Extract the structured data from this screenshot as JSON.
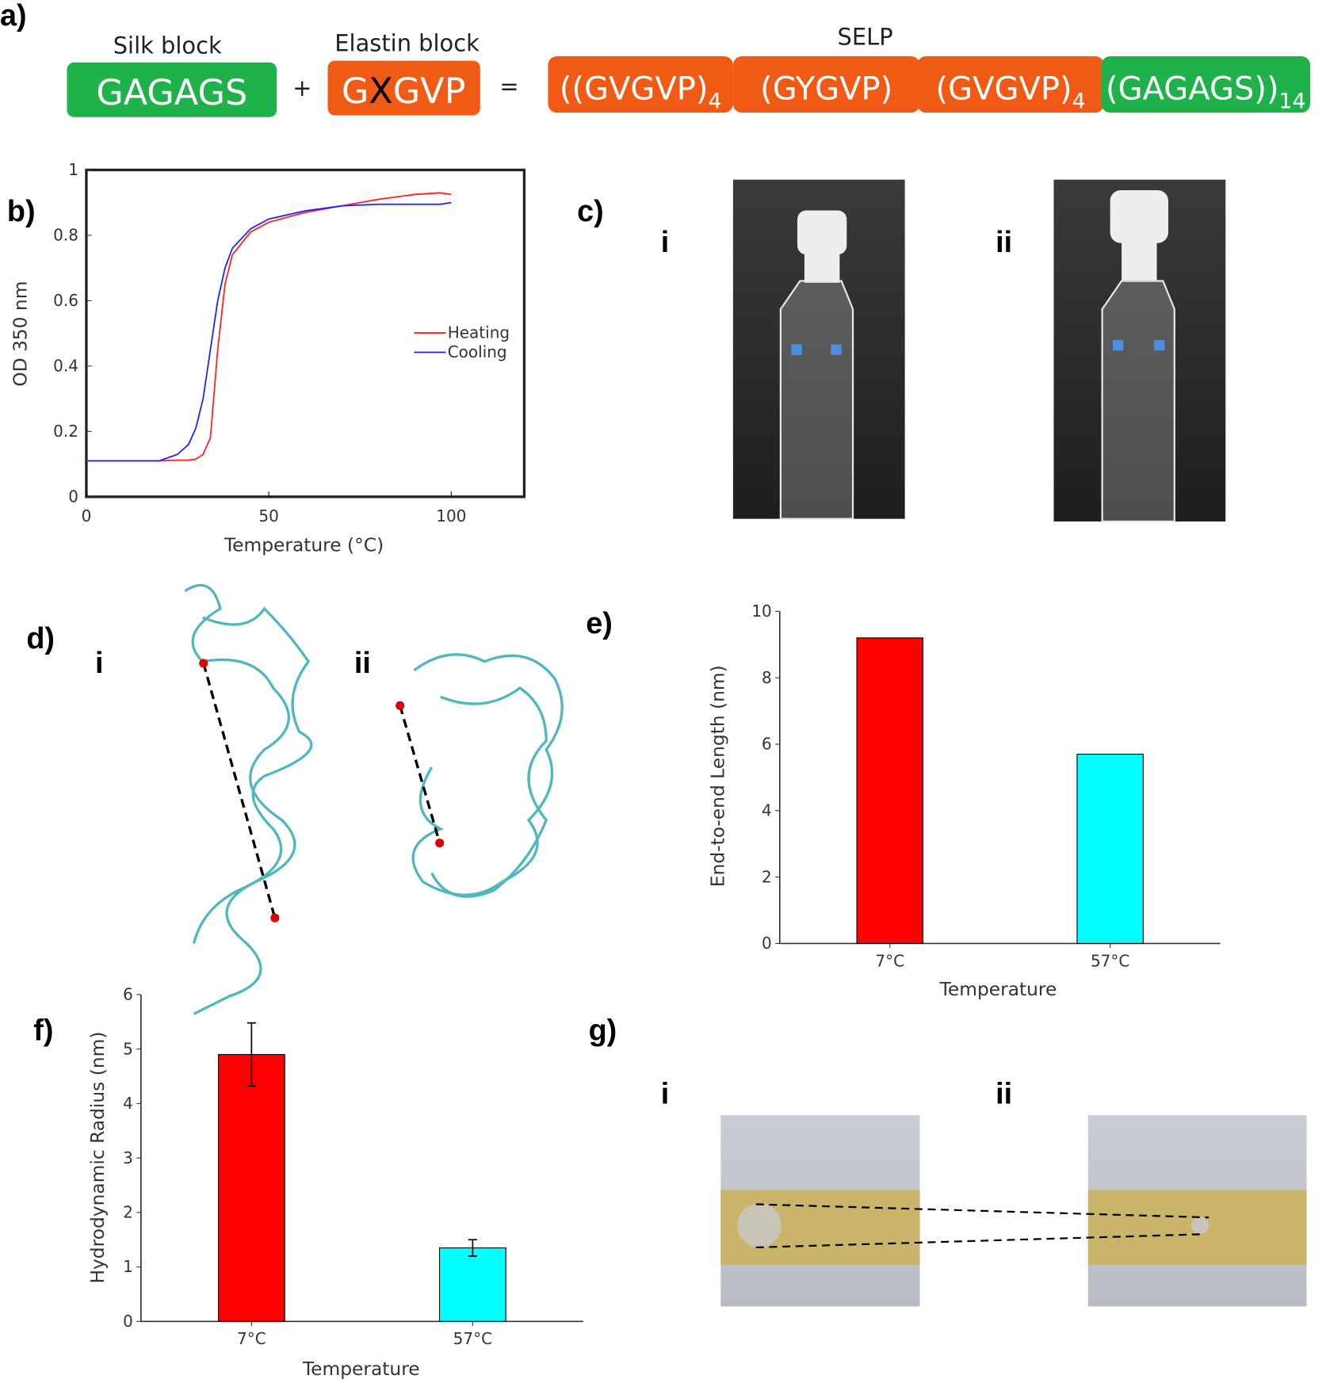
{
  "panel_labels": [
    "a)",
    "b)",
    "c)",
    "d)",
    "e)",
    "f)",
    "g)"
  ],
  "sub_labels": [
    "i",
    "ii"
  ],
  "diagram": {
    "silk_label": "Silk block",
    "silk": "GAGAGS",
    "plus": "+",
    "elastin_label": "Elastin block",
    "elastin": [
      "G",
      "X",
      "GVP"
    ],
    "equals": "=",
    "selp_label": "SELP",
    "selp_blocks": [
      {
        "text": "((GVGVP)",
        "sub": "4"
      },
      {
        "text": "(GYGVP)"
      },
      {
        "text": "(GVGVP)",
        "sub": "4"
      },
      {
        "text": "(GAGAGS))",
        "sub": "14"
      }
    ]
  },
  "chart_data": [
    {
      "type": "line",
      "x_label": "Temperature (°C)",
      "y_label": "OD 350 nm",
      "x": [
        0,
        10,
        20,
        25,
        28,
        30,
        32,
        34,
        36,
        38,
        40,
        45,
        50,
        60,
        70,
        80,
        90,
        97,
        100
      ],
      "series": [
        {
          "name": "Heating",
          "color": "#ff2020",
          "values": [
            0.11,
            0.11,
            0.11,
            0.112,
            0.112,
            0.115,
            0.13,
            0.18,
            0.45,
            0.65,
            0.74,
            0.81,
            0.84,
            0.87,
            0.89,
            0.91,
            0.925,
            0.93,
            0.925
          ]
        },
        {
          "name": "Cooling",
          "color": "#2020ff",
          "values": [
            0.11,
            0.11,
            0.11,
            0.13,
            0.16,
            0.21,
            0.3,
            0.45,
            0.6,
            0.7,
            0.76,
            0.82,
            0.85,
            0.875,
            0.89,
            0.895,
            0.895,
            0.895,
            0.9
          ]
        }
      ],
      "xlim": [
        0,
        120
      ],
      "xticks": [
        0,
        50,
        100
      ],
      "ylim": [
        0,
        1
      ],
      "yticks": [
        0,
        0.2,
        0.4,
        0.6,
        0.8,
        1
      ],
      "legend": "right"
    },
    {
      "type": "bar",
      "x_label": "Temperature",
      "y_label": "End-to-end Length (nm)",
      "categories": [
        "7°C",
        "57°C"
      ],
      "values": [
        9.2,
        5.7
      ],
      "colors": [
        "#ff0000",
        "#00ffff"
      ],
      "ylim": [
        0,
        10
      ],
      "yticks": [
        0,
        2,
        4,
        6,
        8,
        10
      ]
    },
    {
      "type": "bar",
      "x_label": "Temperature",
      "y_label": "Hydrodynamic Radius (nm)",
      "categories": [
        "7°C",
        "57°C"
      ],
      "values": [
        4.9,
        1.35
      ],
      "errors": [
        0.58,
        0.15
      ],
      "colors": [
        "#ff0000",
        "#00ffff"
      ],
      "ylim": [
        0,
        6
      ],
      "yticks": [
        0,
        1,
        2,
        3,
        4,
        5,
        6
      ]
    }
  ]
}
